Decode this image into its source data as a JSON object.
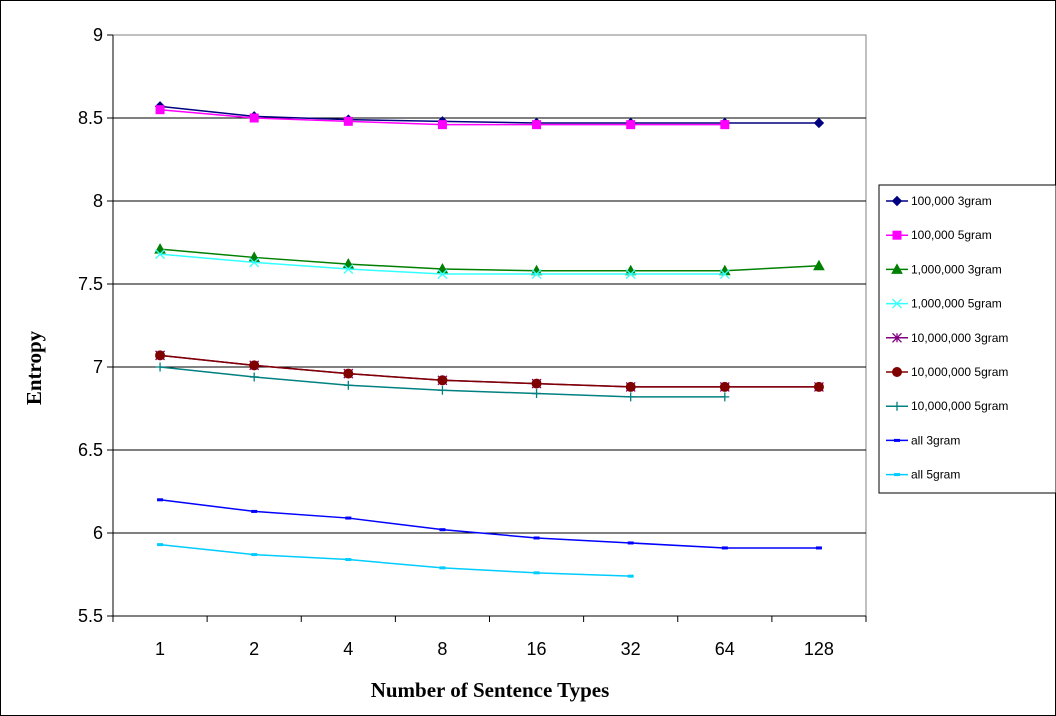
{
  "chart_data": {
    "type": "line",
    "title": "",
    "xlabel": "Number of Sentence Types",
    "ylabel": "Entropy",
    "categories": [
      "1",
      "2",
      "4",
      "8",
      "16",
      "32",
      "64",
      "128"
    ],
    "ylim": [
      5.5,
      9
    ],
    "yticks": [
      "5.5",
      "6",
      "6.5",
      "7",
      "7.5",
      "8",
      "8.5",
      "9"
    ],
    "grid": "horizontal",
    "legend_position": "right",
    "series": [
      {
        "name": "100,000 3gram",
        "color": "#000080",
        "marker": "diamond",
        "values": [
          8.57,
          8.51,
          8.49,
          8.48,
          8.47,
          8.47,
          8.47,
          8.47
        ]
      },
      {
        "name": "100,000 5gram",
        "color": "#ff00ff",
        "marker": "square",
        "values": [
          8.55,
          8.5,
          8.48,
          8.46,
          8.46,
          8.46,
          8.46,
          null
        ]
      },
      {
        "name": "1,000,000 3gram",
        "color": "#008000",
        "marker": "triangle",
        "values": [
          7.71,
          7.66,
          7.62,
          7.59,
          7.58,
          7.58,
          7.58,
          7.61
        ]
      },
      {
        "name": "1,000,000 5gram",
        "color": "#33ffff",
        "marker": "x",
        "values": [
          7.68,
          7.63,
          7.59,
          7.56,
          7.56,
          7.56,
          7.56,
          null
        ]
      },
      {
        "name": "10,000,000 3gram",
        "color": "#800080",
        "marker": "star",
        "values": [
          7.07,
          7.01,
          6.96,
          6.92,
          6.9,
          6.88,
          6.88,
          6.88
        ]
      },
      {
        "name": "10,000,000 5gram",
        "color": "#800000",
        "marker": "circle",
        "values": [
          7.07,
          7.01,
          6.96,
          6.92,
          6.9,
          6.88,
          6.88,
          6.88
        ]
      },
      {
        "name": "10,000,000 5gram",
        "color": "#008080",
        "marker": "plus",
        "values": [
          7.0,
          6.94,
          6.89,
          6.86,
          6.84,
          6.82,
          6.82,
          null
        ]
      },
      {
        "name": "all 3gram",
        "color": "#0000ff",
        "marker": "dash",
        "values": [
          6.2,
          6.13,
          6.09,
          6.02,
          5.97,
          5.94,
          5.91,
          5.91
        ]
      },
      {
        "name": "all 5gram",
        "color": "#00ccff",
        "marker": "dash",
        "values": [
          5.93,
          5.87,
          5.84,
          5.79,
          5.76,
          5.74,
          null,
          null
        ]
      }
    ]
  }
}
